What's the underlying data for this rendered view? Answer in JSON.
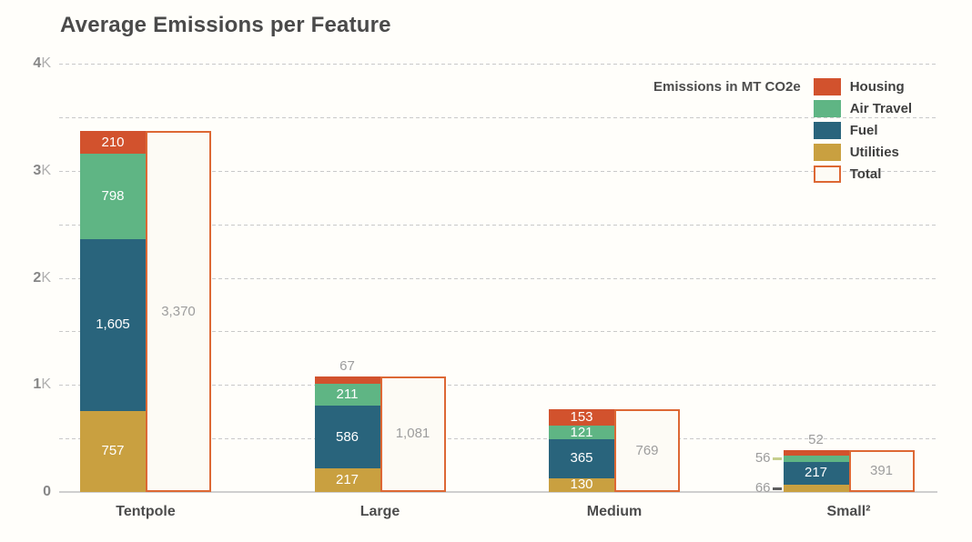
{
  "title": "Average Emissions per Feature",
  "legend": {
    "title": "Emissions in MT CO2e",
    "items": [
      {
        "label": "Housing",
        "color": "#d2522d",
        "swatch": "fill"
      },
      {
        "label": "Air Travel",
        "color": "#5fb584",
        "swatch": "fill"
      },
      {
        "label": "Fuel",
        "color": "#29647c",
        "swatch": "fill"
      },
      {
        "label": "Utilities",
        "color": "#c9a040",
        "swatch": "fill"
      },
      {
        "label": "Total",
        "color": "#dd6834",
        "swatch": "outline"
      }
    ]
  },
  "chart_data": {
    "type": "bar",
    "stacked": true,
    "title": "Average Emissions per Feature",
    "unit_label": "Emissions in MT CO2e",
    "categories": [
      "Tentpole",
      "Large",
      "Medium",
      "Small²"
    ],
    "series": [
      {
        "name": "Housing",
        "color": "#d2522d",
        "values": [
          210,
          67,
          153,
          52
        ]
      },
      {
        "name": "Air Travel",
        "color": "#5fb584",
        "values": [
          798,
          211,
          121,
          56
        ]
      },
      {
        "name": "Fuel",
        "color": "#29647c",
        "values": [
          1605,
          586,
          365,
          217
        ]
      },
      {
        "name": "Utilities",
        "color": "#c9a040",
        "values": [
          757,
          217,
          130,
          66
        ]
      }
    ],
    "totals": {
      "name": "Total",
      "values": [
        3370,
        1081,
        769,
        391
      ],
      "border_color": "#dd6834",
      "fill_color": "#fdfbf5"
    },
    "ylim": [
      0,
      4000
    ],
    "grid_step": 500,
    "grid": true,
    "legend_position": "top-right",
    "y_ticks": [
      {
        "value": 4000,
        "num": "4",
        "suffix": "K"
      },
      {
        "value": 3000,
        "num": "3",
        "suffix": "K"
      },
      {
        "value": 2000,
        "num": "2",
        "suffix": "K"
      },
      {
        "value": 1000,
        "num": "1",
        "suffix": "K"
      },
      {
        "value": 0,
        "num": "0",
        "suffix": ""
      }
    ],
    "label_positions": {
      "Housing|Large": "above",
      "Housing|Small²": "above",
      "Air Travel|Small²": "left",
      "Utilities|Small²": "left"
    },
    "leader_tick_colors": {
      "Air Travel|Small²": "#c6cf8d",
      "Utilities|Small²": "#5e5e5e"
    }
  }
}
